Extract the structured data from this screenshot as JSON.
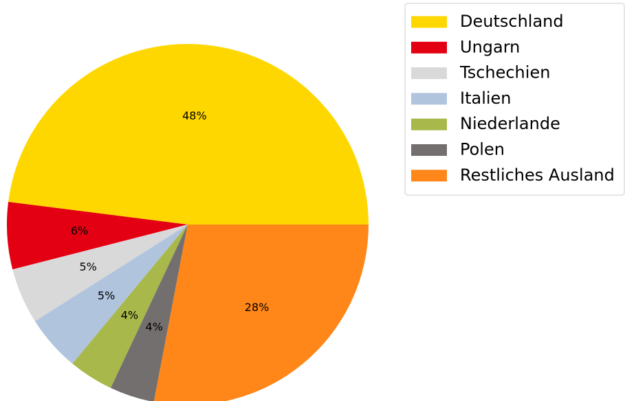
{
  "chart_data": {
    "type": "pie",
    "categories": [
      "Deutschland",
      "Ungarn",
      "Tschechien",
      "Italien",
      "Niederlande",
      "Polen",
      "Restliches Ausland"
    ],
    "values": [
      48,
      6,
      5,
      5,
      4,
      4,
      28
    ],
    "value_labels": [
      "48%",
      "6%",
      "5%",
      "5%",
      "4%",
      "4%",
      "28%"
    ],
    "colors": [
      "#ffd700",
      "#e30013",
      "#d9d9d9",
      "#b0c4de",
      "#a9b84a",
      "#736f6e",
      "#ff8619"
    ],
    "legend": "upper right"
  }
}
